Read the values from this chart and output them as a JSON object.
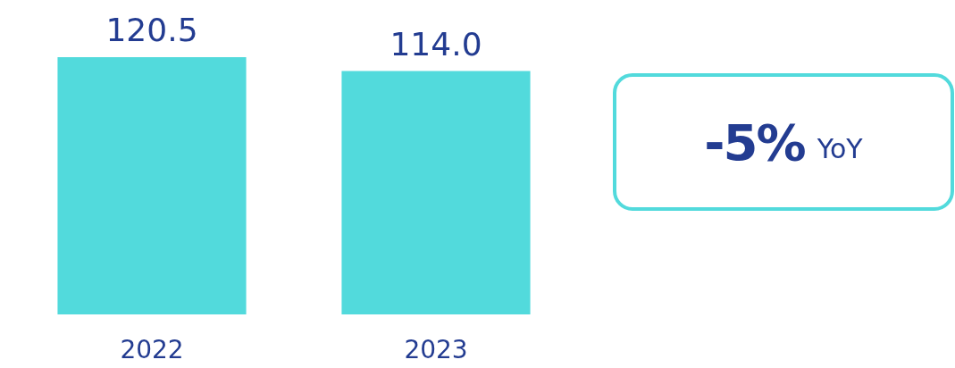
{
  "chart_data": {
    "type": "bar",
    "categories": [
      "2022",
      "2023"
    ],
    "values": [
      120.5,
      114.0
    ],
    "color": "#52dadc",
    "value_labels": [
      "120.5",
      "114.0"
    ],
    "grid": false,
    "annotations": [
      "-5% YoY"
    ]
  }
}
